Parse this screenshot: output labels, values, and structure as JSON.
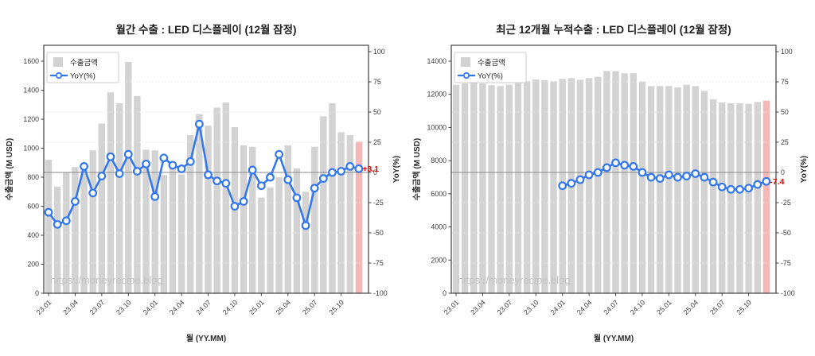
{
  "style": {
    "bar_color": "#d3d3d3",
    "highlight_bar_color": "#f4b8b8",
    "line_color": "#3377ee",
    "marker_fill": "#ffffff",
    "zero_line_color": "#8a8a8a",
    "grid_color": "#e7e7e7",
    "spine_color": "#404040",
    "annotation_color": "#ee0000",
    "watermark_color": "#c4c4c4"
  },
  "watermark": "https://moneyrecipe.blog",
  "chart_data": [
    {
      "type": "bar",
      "title": "월간 수출 : LED 디스플레이 (12월 잠정)",
      "xlabel": "월 (YY.MM)",
      "ylabel_left": "수출금액 (M USD)",
      "ylabel_right": "YoY(%)",
      "legend": {
        "bar": "수출금액",
        "line": "YoY(%)"
      },
      "annotation": "+3.1",
      "highlight_last_bar": true,
      "grid": "dotted-horizontal",
      "legend_position": "upper-left",
      "ylim_left": [
        0,
        1712
      ],
      "ylim_right": [
        -100,
        100
      ],
      "y_left_ticks": [
        0,
        200,
        400,
        600,
        800,
        1000,
        1200,
        1400,
        1600
      ],
      "y_right_ticks": [
        100,
        75,
        50,
        25,
        0,
        -25,
        -50,
        -75,
        -100
      ],
      "x_ticks_shown": [
        "23.01",
        "23.04",
        "23.07",
        "23.10",
        "24.01",
        "24.04",
        "24.07",
        "24.10",
        "25.01",
        "25.04",
        "25.07",
        "25.10"
      ],
      "categories": [
        "23.01",
        "23.02",
        "23.03",
        "23.04",
        "23.05",
        "23.06",
        "23.07",
        "23.08",
        "23.09",
        "23.10",
        "23.11",
        "23.12",
        "24.01",
        "24.02",
        "24.03",
        "24.04",
        "24.05",
        "24.06",
        "24.07",
        "24.08",
        "24.09",
        "24.10",
        "24.11",
        "24.12",
        "25.01",
        "25.02",
        "25.03",
        "25.04",
        "25.05",
        "25.06",
        "25.07",
        "25.08",
        "25.09",
        "25.10",
        "25.11",
        "25.12"
      ],
      "series": [
        {
          "name": "수출금액",
          "type": "bar",
          "values": [
            920,
            735,
            830,
            870,
            870,
            985,
            1170,
            1385,
            1310,
            1595,
            1360,
            990,
            985,
            815,
            880,
            820,
            1090,
            1235,
            1155,
            1280,
            1315,
            1145,
            1020,
            1010,
            660,
            730,
            800,
            1020,
            860,
            700,
            1010,
            1220,
            1310,
            1110,
            1090,
            1045
          ]
        },
        {
          "name": "YoY(%)",
          "type": "line",
          "values": [
            -33,
            -43,
            -40,
            -24,
            5,
            -17,
            -3,
            13,
            -1,
            15,
            1,
            7,
            -20,
            12,
            6,
            3,
            9,
            40,
            -2,
            -7,
            -9,
            -28,
            -24,
            2,
            -11,
            -4,
            15,
            -6,
            -21,
            -44,
            -13,
            -5,
            0,
            1,
            5,
            3.1
          ]
        }
      ]
    },
    {
      "type": "bar",
      "title": "최근 12개월 누적수출 : LED 디스플레이 (12월 잠정)",
      "xlabel": "월 (YY.MM)",
      "ylabel_left": "수출금액 (M USD)",
      "ylabel_right": "YoY(%)",
      "legend": {
        "bar": "수출금액",
        "line": "YoY(%)"
      },
      "annotation": "-7.4",
      "highlight_last_bar": true,
      "grid": "dotted-horizontal",
      "legend_position": "upper-left",
      "ylim_left": [
        0,
        14980
      ],
      "ylim_right": [
        -100,
        100
      ],
      "y_left_ticks": [
        0,
        2000,
        4000,
        6000,
        8000,
        10000,
        12000,
        14000
      ],
      "y_right_ticks": [
        100,
        75,
        50,
        25,
        0,
        -25,
        -50,
        -75,
        -100
      ],
      "x_ticks_shown": [
        "23.01",
        "23.04",
        "23.07",
        "23.10",
        "24.01",
        "24.04",
        "24.07",
        "24.10",
        "25.01",
        "25.04",
        "25.07",
        "25.10"
      ],
      "categories": [
        "23.01",
        "23.02",
        "23.03",
        "23.04",
        "23.05",
        "23.06",
        "23.07",
        "23.08",
        "23.09",
        "23.10",
        "23.11",
        "23.12",
        "24.01",
        "24.02",
        "24.03",
        "24.04",
        "24.05",
        "24.06",
        "24.07",
        "24.08",
        "24.09",
        "24.10",
        "24.11",
        "24.12",
        "25.01",
        "25.02",
        "25.03",
        "25.04",
        "25.05",
        "25.06",
        "25.07",
        "25.08",
        "25.09",
        "25.10",
        "25.11",
        "25.12"
      ],
      "series": [
        {
          "name": "수출금액",
          "type": "bar",
          "values": [
            12580,
            12660,
            12690,
            12660,
            12550,
            12500,
            12580,
            12740,
            12790,
            12900,
            12850,
            12790,
            12930,
            12980,
            12880,
            12980,
            13060,
            13410,
            13400,
            13270,
            13270,
            12770,
            12500,
            12500,
            12500,
            12420,
            12580,
            12500,
            12210,
            11700,
            11510,
            11460,
            11460,
            11430,
            11540,
            11620
          ]
        },
        {
          "name": "YoY(%)",
          "type": "line",
          "values": [
            null,
            null,
            null,
            null,
            null,
            null,
            null,
            null,
            null,
            null,
            null,
            null,
            -11,
            -9,
            -6,
            -2,
            0,
            4,
            8,
            6,
            5,
            0,
            -4,
            -5,
            -2,
            -4,
            -3,
            -1,
            -4,
            -8,
            -12,
            -14,
            -14,
            -13,
            -10,
            -7.4
          ]
        }
      ]
    }
  ]
}
